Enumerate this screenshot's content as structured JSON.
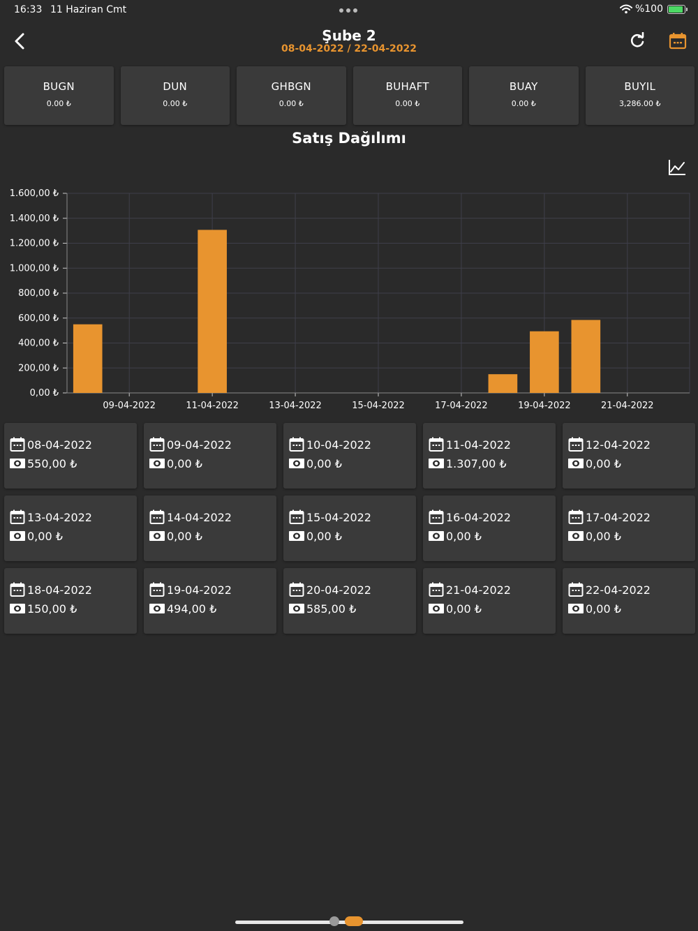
{
  "status_bar": {
    "time": "16:33",
    "date": "11 Haziran Cmt",
    "battery": "%100"
  },
  "header": {
    "title": "Şube 2",
    "date_range": "08-04-2022 / 22-04-2022"
  },
  "colors": {
    "accent": "#e8942f",
    "background": "#2a2a2a",
    "card": "#3a3a3a",
    "battery": "#4cd964"
  },
  "summary": [
    {
      "label": "BUGN",
      "value": "0.00 ₺"
    },
    {
      "label": "DUN",
      "value": "0.00 ₺"
    },
    {
      "label": "GHBGN",
      "value": "0.00 ₺"
    },
    {
      "label": "BUHAFT",
      "value": "0.00 ₺"
    },
    {
      "label": "BUAY",
      "value": "0.00 ₺"
    },
    {
      "label": "BUYIL",
      "value": "3,286.00 ₺"
    }
  ],
  "chart_title": "Satış Dağılımı",
  "chart_data": {
    "type": "bar",
    "title": "Satış Dağılımı",
    "categories": [
      "08-04-2022",
      "09-04-2022",
      "10-04-2022",
      "11-04-2022",
      "12-04-2022",
      "13-04-2022",
      "14-04-2022",
      "15-04-2022",
      "16-04-2022",
      "17-04-2022",
      "18-04-2022",
      "19-04-2022",
      "20-04-2022",
      "21-04-2022",
      "22-04-2022"
    ],
    "values": [
      550,
      0,
      0,
      1307,
      0,
      0,
      0,
      0,
      0,
      0,
      150,
      494,
      585,
      0,
      0
    ],
    "x_tick_labels": [
      "09-04-2022",
      "11-04-2022",
      "13-04-2022",
      "15-04-2022",
      "17-04-2022",
      "19-04-2022",
      "21-04-2022"
    ],
    "y_tick_labels": [
      "0,00 ₺",
      "200,00 ₺",
      "400,00 ₺",
      "600,00 ₺",
      "800,00 ₺",
      "1.000,00 ₺",
      "1.200,00 ₺",
      "1.400,00 ₺",
      "1.600,00 ₺"
    ],
    "ylim": [
      0,
      1600
    ],
    "grid": true,
    "bar_color": "#e8942f"
  },
  "days": [
    {
      "date": "08-04-2022",
      "amount": "550,00 ₺"
    },
    {
      "date": "09-04-2022",
      "amount": "0,00 ₺"
    },
    {
      "date": "10-04-2022",
      "amount": "0,00 ₺"
    },
    {
      "date": "11-04-2022",
      "amount": "1.307,00 ₺"
    },
    {
      "date": "12-04-2022",
      "amount": "0,00 ₺"
    },
    {
      "date": "13-04-2022",
      "amount": "0,00 ₺"
    },
    {
      "date": "14-04-2022",
      "amount": "0,00 ₺"
    },
    {
      "date": "15-04-2022",
      "amount": "0,00 ₺"
    },
    {
      "date": "16-04-2022",
      "amount": "0,00 ₺"
    },
    {
      "date": "17-04-2022",
      "amount": "0,00 ₺"
    },
    {
      "date": "18-04-2022",
      "amount": "150,00 ₺"
    },
    {
      "date": "19-04-2022",
      "amount": "494,00 ₺"
    },
    {
      "date": "20-04-2022",
      "amount": "585,00 ₺"
    },
    {
      "date": "21-04-2022",
      "amount": "0,00 ₺"
    },
    {
      "date": "22-04-2022",
      "amount": "0,00 ₺"
    }
  ]
}
